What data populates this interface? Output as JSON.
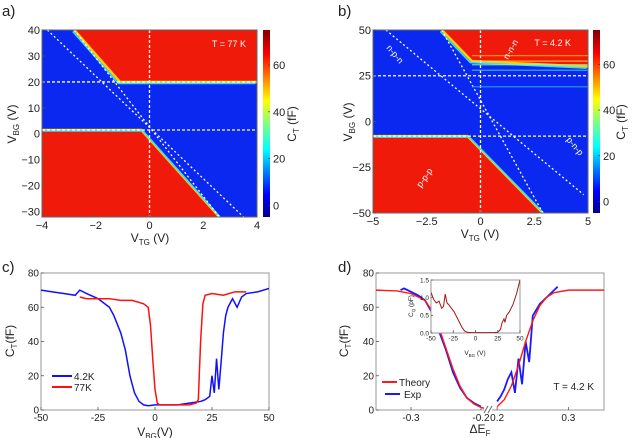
{
  "chart_data": [
    {
      "panel": "a)",
      "type": "heatmap",
      "xlabel": "V",
      "xlabel_sub": "TG",
      "xlabel_unit": " (V)",
      "ylabel": "V",
      "ylabel_sub": "BG",
      "ylabel_unit": " (V)",
      "xlim": [
        -4,
        4
      ],
      "ylim": [
        -32,
        40
      ],
      "xticks": [
        -4,
        -2,
        0,
        2,
        4
      ],
      "xtick_labels": [
        "−4",
        "−2",
        "0",
        "2",
        "4"
      ],
      "yticks": [
        -30,
        -20,
        -10,
        0,
        10,
        20,
        30,
        40
      ],
      "ytick_labels": [
        "−30",
        "−20",
        "−10",
        "0",
        "10",
        "20",
        "30",
        "40"
      ],
      "annotation": "T = 77 K",
      "colorbar": {
        "label": "C",
        "label_sub": "T",
        "label_unit": " (fF)",
        "range": [
          -5,
          75
        ],
        "ticks": [
          0,
          20,
          40,
          60
        ],
        "tick_labels": [
          "0",
          "20",
          "40",
          "60"
        ]
      },
      "regions": {
        "upper_transition_vbg": 20,
        "lower_transition_vbg": 1.5,
        "diag_upper": [
          [
            -2.8,
            40
          ],
          [
            -1.1,
            20
          ]
        ],
        "diag_lower": [
          [
            -0.3,
            1.5
          ],
          [
            2.6,
            -32
          ]
        ]
      },
      "dashed_lines": {
        "horizontal_vbg": [
          20,
          1.5
        ],
        "vertical_vtg": [
          0
        ],
        "diagonals": [
          [
            [
              -2.8,
              40
            ],
            [
              2.6,
              -32
            ]
          ],
          [
            [
              -3.8,
              40
            ],
            [
              3.5,
              -32
            ]
          ]
        ]
      }
    },
    {
      "panel": "b)",
      "type": "heatmap",
      "xlabel": "V",
      "xlabel_sub": "TG",
      "xlabel_unit": " (V)",
      "ylabel": "V",
      "ylabel_sub": "BG",
      "ylabel_unit": " (V)",
      "xlim": [
        -5,
        5
      ],
      "ylim": [
        -50,
        50
      ],
      "xticks": [
        -5,
        -2.5,
        0,
        2.5,
        5
      ],
      "xtick_labels": [
        "−5",
        "−2.5",
        "0",
        "2.5",
        "5"
      ],
      "yticks": [
        -50,
        -25,
        0,
        25,
        50
      ],
      "ytick_labels": [
        "−50",
        "−25",
        "0",
        "25",
        "50"
      ],
      "annotation": "T = 4.2 K",
      "region_labels": [
        "n-p-n",
        "n-n-n",
        "p-p-p",
        "p-n-p"
      ],
      "colorbar": {
        "label": "C",
        "label_sub": "T",
        "label_unit": " (fF)",
        "range": [
          -5,
          75
        ],
        "ticks": [
          0,
          20,
          40,
          60
        ],
        "tick_labels": [
          "0",
          "20",
          "40",
          "60"
        ]
      },
      "regions": {
        "upper_transition_vbg": 30,
        "lower_transition_vbg": -8,
        "diag_upper": [
          [
            -1.8,
            50
          ],
          [
            -0.4,
            33
          ]
        ],
        "diag_lower": [
          [
            -0.6,
            -8
          ],
          [
            2.9,
            -50
          ]
        ]
      },
      "dashed_lines": {
        "horizontal_vbg": [
          25,
          -8
        ],
        "vertical_vtg": [
          0
        ],
        "diagonals": [
          [
            [
              -1.8,
              50
            ],
            [
              2.9,
              -50
            ]
          ],
          [
            [
              -4.4,
              50
            ],
            [
              4.8,
              -40
            ]
          ]
        ]
      }
    },
    {
      "panel": "c)",
      "type": "line",
      "xlabel": "V",
      "xlabel_sub": "BG",
      "xlabel_unit": "(V)",
      "ylabel": "C",
      "ylabel_sub": "T",
      "ylabel_unit": "(fF)",
      "xlim": [
        -50,
        50
      ],
      "ylim": [
        0,
        80
      ],
      "xticks": [
        -50,
        -25,
        0,
        25,
        50
      ],
      "xtick_labels": [
        "-50",
        "-25",
        "0",
        "25",
        "50"
      ],
      "yticks": [
        0,
        20,
        40,
        60,
        80
      ],
      "ytick_labels": [
        "0",
        "20",
        "40",
        "60",
        "80"
      ],
      "legend_position": "bottom-left",
      "series": [
        {
          "name": "4.2K",
          "color": "#1010ff",
          "x": [
            -50,
            -45,
            -40,
            -35,
            -33,
            -30,
            -25,
            -20,
            -18,
            -15,
            -13,
            -11,
            -9,
            -7,
            -5,
            -3,
            0,
            5,
            10,
            15,
            20,
            22,
            24,
            25,
            26,
            27,
            28,
            29,
            30,
            31,
            32,
            34,
            36,
            38,
            40,
            45,
            50
          ],
          "y": [
            70,
            69,
            68,
            67,
            70,
            68,
            65,
            60,
            55,
            45,
            35,
            20,
            10,
            5,
            3,
            2.5,
            3,
            3,
            3,
            4,
            5,
            6,
            8,
            20,
            10,
            30,
            12,
            28,
            45,
            55,
            60,
            65,
            60,
            66,
            68,
            69,
            71
          ]
        },
        {
          "name": "77K",
          "color": "#ff1010",
          "x": [
            -33,
            -30,
            -25,
            -20,
            -15,
            -10,
            -5,
            -3,
            -2,
            -1,
            0,
            1,
            2,
            5,
            10,
            15,
            18,
            19,
            20,
            21,
            22,
            25,
            30,
            35,
            40
          ],
          "y": [
            66,
            65,
            65,
            65,
            64,
            64,
            62,
            60,
            50,
            30,
            12,
            4,
            3,
            3,
            3,
            3,
            4,
            6,
            40,
            62,
            67,
            68,
            67,
            69,
            69
          ]
        }
      ]
    },
    {
      "panel": "d)",
      "type": "line",
      "xlabel": "ΔE",
      "xlabel_sub": "F",
      "xlabel_unit": "",
      "ylabel": "C",
      "ylabel_sub": "T",
      "ylabel_unit": "(fF)",
      "ylim": [
        0,
        80
      ],
      "axis_break": true,
      "left_xlim": [
        -0.35,
        -0.19
      ],
      "right_xlim": [
        0.19,
        0.35
      ],
      "xticks": [
        -0.3,
        -0.2,
        0.2,
        0.3
      ],
      "xtick_labels": [
        "-0.3",
        "-0.2",
        "0.2",
        "0.3"
      ],
      "yticks": [
        0,
        20,
        40,
        60,
        80
      ],
      "ytick_labels": [
        "0",
        "20",
        "40",
        "60",
        "80"
      ],
      "annotation": "T = 4.2 K",
      "legend_position": "bottom-left",
      "series": [
        {
          "name": "Theory",
          "color": "#ff1a1a",
          "left_x": [
            -0.35,
            -0.32,
            -0.3,
            -0.28,
            -0.27,
            -0.26,
            -0.25,
            -0.24,
            -0.23,
            -0.22,
            -0.21,
            -0.2,
            -0.195
          ],
          "left_y": [
            70,
            69.5,
            68,
            64,
            58,
            48,
            36,
            24,
            14,
            7,
            3.5,
            1.5,
            1
          ],
          "right_x": [
            0.2,
            0.21,
            0.22,
            0.23,
            0.24,
            0.25,
            0.26,
            0.27,
            0.28,
            0.3,
            0.32,
            0.35
          ],
          "right_y": [
            2,
            6,
            14,
            26,
            40,
            52,
            61,
            66,
            68.5,
            70,
            70,
            70
          ]
        },
        {
          "name": "Exp",
          "color": "#1a1aff",
          "left_x": [
            -0.315,
            -0.31,
            -0.3,
            -0.29,
            -0.28,
            -0.27,
            -0.26,
            -0.25,
            -0.24,
            -0.23,
            -0.22,
            -0.21,
            -0.2
          ],
          "left_y": [
            70,
            71,
            69,
            67,
            64,
            57,
            46,
            35,
            22,
            13,
            7,
            4,
            2
          ],
          "right_x": [
            0.2,
            0.205,
            0.21,
            0.215,
            0.22,
            0.225,
            0.23,
            0.235,
            0.24,
            0.245,
            0.25,
            0.26,
            0.27,
            0.28,
            0.285
          ],
          "right_y": [
            5,
            8,
            12,
            18,
            22,
            10,
            30,
            15,
            40,
            28,
            55,
            62,
            66,
            70,
            72
          ]
        }
      ],
      "inset": {
        "xlabel": "V",
        "xlabel_sub": "BG",
        "xlabel_unit": " (V)",
        "ylabel": "C",
        "ylabel_sub": "Q",
        "ylabel_unit": " (pF)",
        "xlim": [
          -50,
          50
        ],
        "ylim": [
          0,
          1.5
        ],
        "xticks": [
          -50,
          -25,
          0,
          25,
          50
        ],
        "xtick_labels": [
          "-50",
          "-25",
          "0",
          "25",
          "50"
        ],
        "yticks": [
          0,
          0.5,
          1.0,
          1.5
        ],
        "ytick_labels": [
          "0.0",
          "0.5",
          "1.0",
          "1.5"
        ],
        "series": [
          {
            "name": "CQ",
            "color": "#a01818",
            "x": [
              -50,
              -47,
              -44,
              -41,
              -38,
              -36,
              -34,
              -32,
              -30,
              -27,
              -24,
              -21,
              -18,
              -15,
              -12,
              -9,
              -5,
              0,
              10,
              20,
              25,
              28,
              30,
              32,
              33,
              35,
              38,
              42,
              46,
              50
            ],
            "y": [
              1.15,
              0.95,
              0.85,
              0.9,
              0.7,
              0.75,
              1.1,
              0.85,
              0.8,
              0.7,
              0.6,
              0.45,
              0.3,
              0.15,
              0.05,
              0.02,
              0.01,
              0.01,
              0.01,
              0.01,
              0.02,
              0.1,
              0.3,
              0.4,
              0.3,
              0.5,
              0.6,
              0.8,
              1.1,
              1.5
            ]
          }
        ]
      }
    }
  ]
}
